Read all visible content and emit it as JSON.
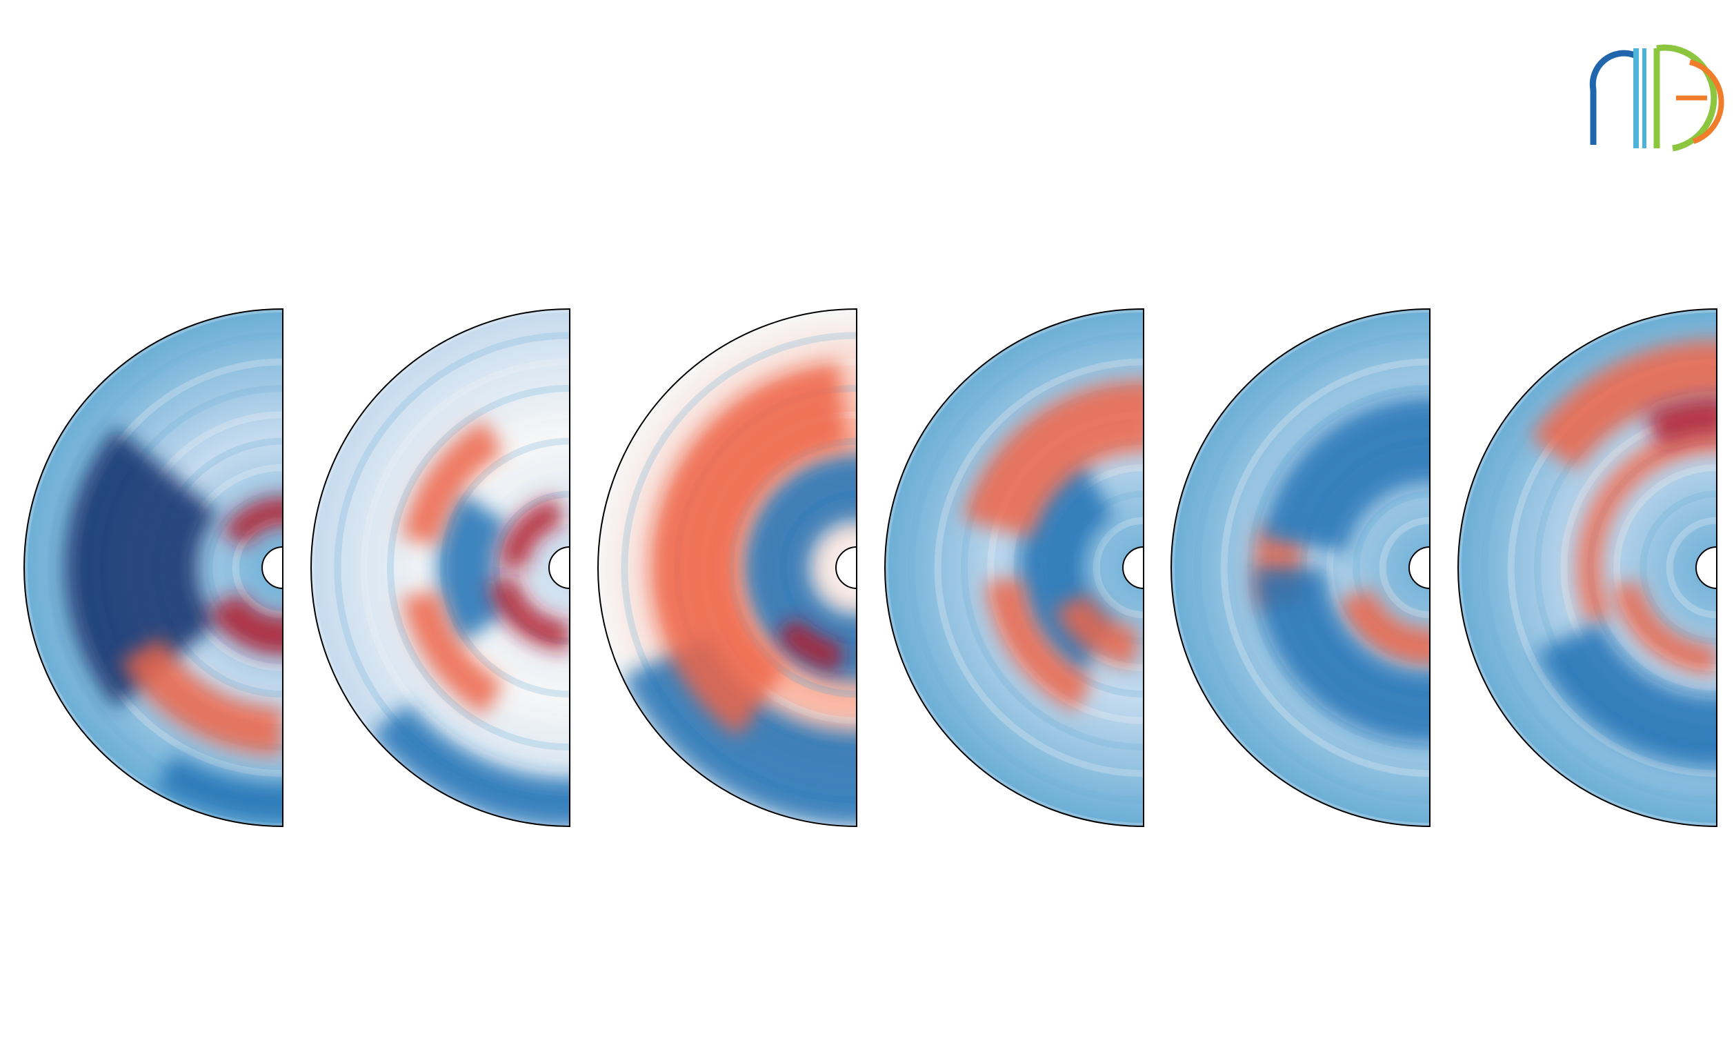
{
  "colors": {
    "background": "#ffffff",
    "outline": "#000000",
    "deep_blue": "#08306b",
    "strong_blue": "#2171b5",
    "mid_blue": "#6baed6",
    "light_blue": "#c6dbef",
    "white": "#f7f7f7",
    "light_red": "#fbb4a0",
    "mid_red": "#ef6548",
    "strong_red": "#b2182b",
    "logo_blue": "#2166ac",
    "logo_cyan": "#4fb3d9",
    "logo_green": "#8cc63f",
    "logo_orange": "#f07d2a"
  },
  "panels": [
    {
      "name": "field-panel-1",
      "background_tone": "blue",
      "blobs": [
        {
          "tone": "deep",
          "r": 0.55,
          "theta": 180,
          "dr": 0.28,
          "dtheta": 40
        },
        {
          "tone": "red_strong",
          "r": 0.15,
          "theta": 110,
          "dr": 0.06,
          "dtheta": 40
        },
        {
          "tone": "red_strong",
          "r": 0.2,
          "theta": 250,
          "dr": 0.08,
          "dtheta": 40
        },
        {
          "tone": "red_mid",
          "r": 0.6,
          "theta": 240,
          "dr": 0.1,
          "dtheta": 30
        },
        {
          "tone": "blue_strong",
          "r": 0.9,
          "theta": 260,
          "dr": 0.08,
          "dtheta": 20
        }
      ]
    },
    {
      "name": "field-panel-2",
      "background_tone": "light",
      "blobs": [
        {
          "tone": "blue_strong",
          "r": 0.35,
          "theta": 180,
          "dr": 0.12,
          "dtheta": 35
        },
        {
          "tone": "red_strong",
          "r": 0.15,
          "theta": 140,
          "dr": 0.06,
          "dtheta": 40
        },
        {
          "tone": "red_strong",
          "r": 0.2,
          "theta": 230,
          "dr": 0.06,
          "dtheta": 40
        },
        {
          "tone": "red_mid",
          "r": 0.55,
          "theta": 215,
          "dr": 0.08,
          "dtheta": 25
        },
        {
          "tone": "red_mid",
          "r": 0.55,
          "theta": 145,
          "dr": 0.08,
          "dtheta": 25
        },
        {
          "tone": "blue_strong",
          "r": 0.9,
          "theta": 250,
          "dr": 0.1,
          "dtheta": 30
        }
      ]
    },
    {
      "name": "field-panel-3",
      "background_tone": "red",
      "blobs": [
        {
          "tone": "blue_strong",
          "r": 0.25,
          "theta": 180,
          "dr": 0.14,
          "dtheta": 140
        },
        {
          "tone": "red_strong",
          "r": 0.3,
          "theta": 240,
          "dr": 0.06,
          "dtheta": 20
        },
        {
          "tone": "blue_strong",
          "r": 0.8,
          "theta": 245,
          "dr": 0.2,
          "dtheta": 40
        },
        {
          "tone": "red_mid",
          "r": 0.6,
          "theta": 165,
          "dr": 0.18,
          "dtheta": 70
        }
      ]
    },
    {
      "name": "field-panel-4",
      "background_tone": "blue",
      "blobs": [
        {
          "tone": "blue_strong",
          "r": 0.3,
          "theta": 180,
          "dr": 0.14,
          "dtheta": 60
        },
        {
          "tone": "red_mid",
          "r": 0.55,
          "theta": 125,
          "dr": 0.15,
          "dtheta": 40
        },
        {
          "tone": "red_mid",
          "r": 0.5,
          "theta": 215,
          "dr": 0.08,
          "dtheta": 30
        },
        {
          "tone": "red_mid",
          "r": 0.25,
          "theta": 235,
          "dr": 0.08,
          "dtheta": 30
        }
      ]
    },
    {
      "name": "field-panel-5",
      "background_tone": "blue",
      "blobs": [
        {
          "tone": "red_mid",
          "r": 0.55,
          "theta": 180,
          "dr": 0.1,
          "dtheta": 14
        },
        {
          "tone": "red_mid",
          "r": 0.25,
          "theta": 240,
          "dr": 0.08,
          "dtheta": 40
        },
        {
          "tone": "blue_strong",
          "r": 0.45,
          "theta": 120,
          "dr": 0.18,
          "dtheta": 50
        },
        {
          "tone": "blue_strong",
          "r": 0.5,
          "theta": 230,
          "dr": 0.15,
          "dtheta": 50
        }
      ]
    },
    {
      "name": "field-panel-6",
      "background_tone": "blue",
      "blobs": [
        {
          "tone": "red_mid",
          "r": 0.75,
          "theta": 115,
          "dr": 0.12,
          "dtheta": 30
        },
        {
          "tone": "red_mid",
          "r": 0.45,
          "theta": 145,
          "dr": 0.05,
          "dtheta": 60
        },
        {
          "tone": "red_strong",
          "r": 0.55,
          "theta": 100,
          "dr": 0.08,
          "dtheta": 15
        },
        {
          "tone": "red_mid",
          "r": 0.3,
          "theta": 230,
          "dr": 0.06,
          "dtheta": 40
        },
        {
          "tone": "blue_strong",
          "r": 0.6,
          "theta": 245,
          "dr": 0.15,
          "dtheta": 40
        }
      ]
    }
  ],
  "logo": {
    "name": "aie-logo"
  }
}
